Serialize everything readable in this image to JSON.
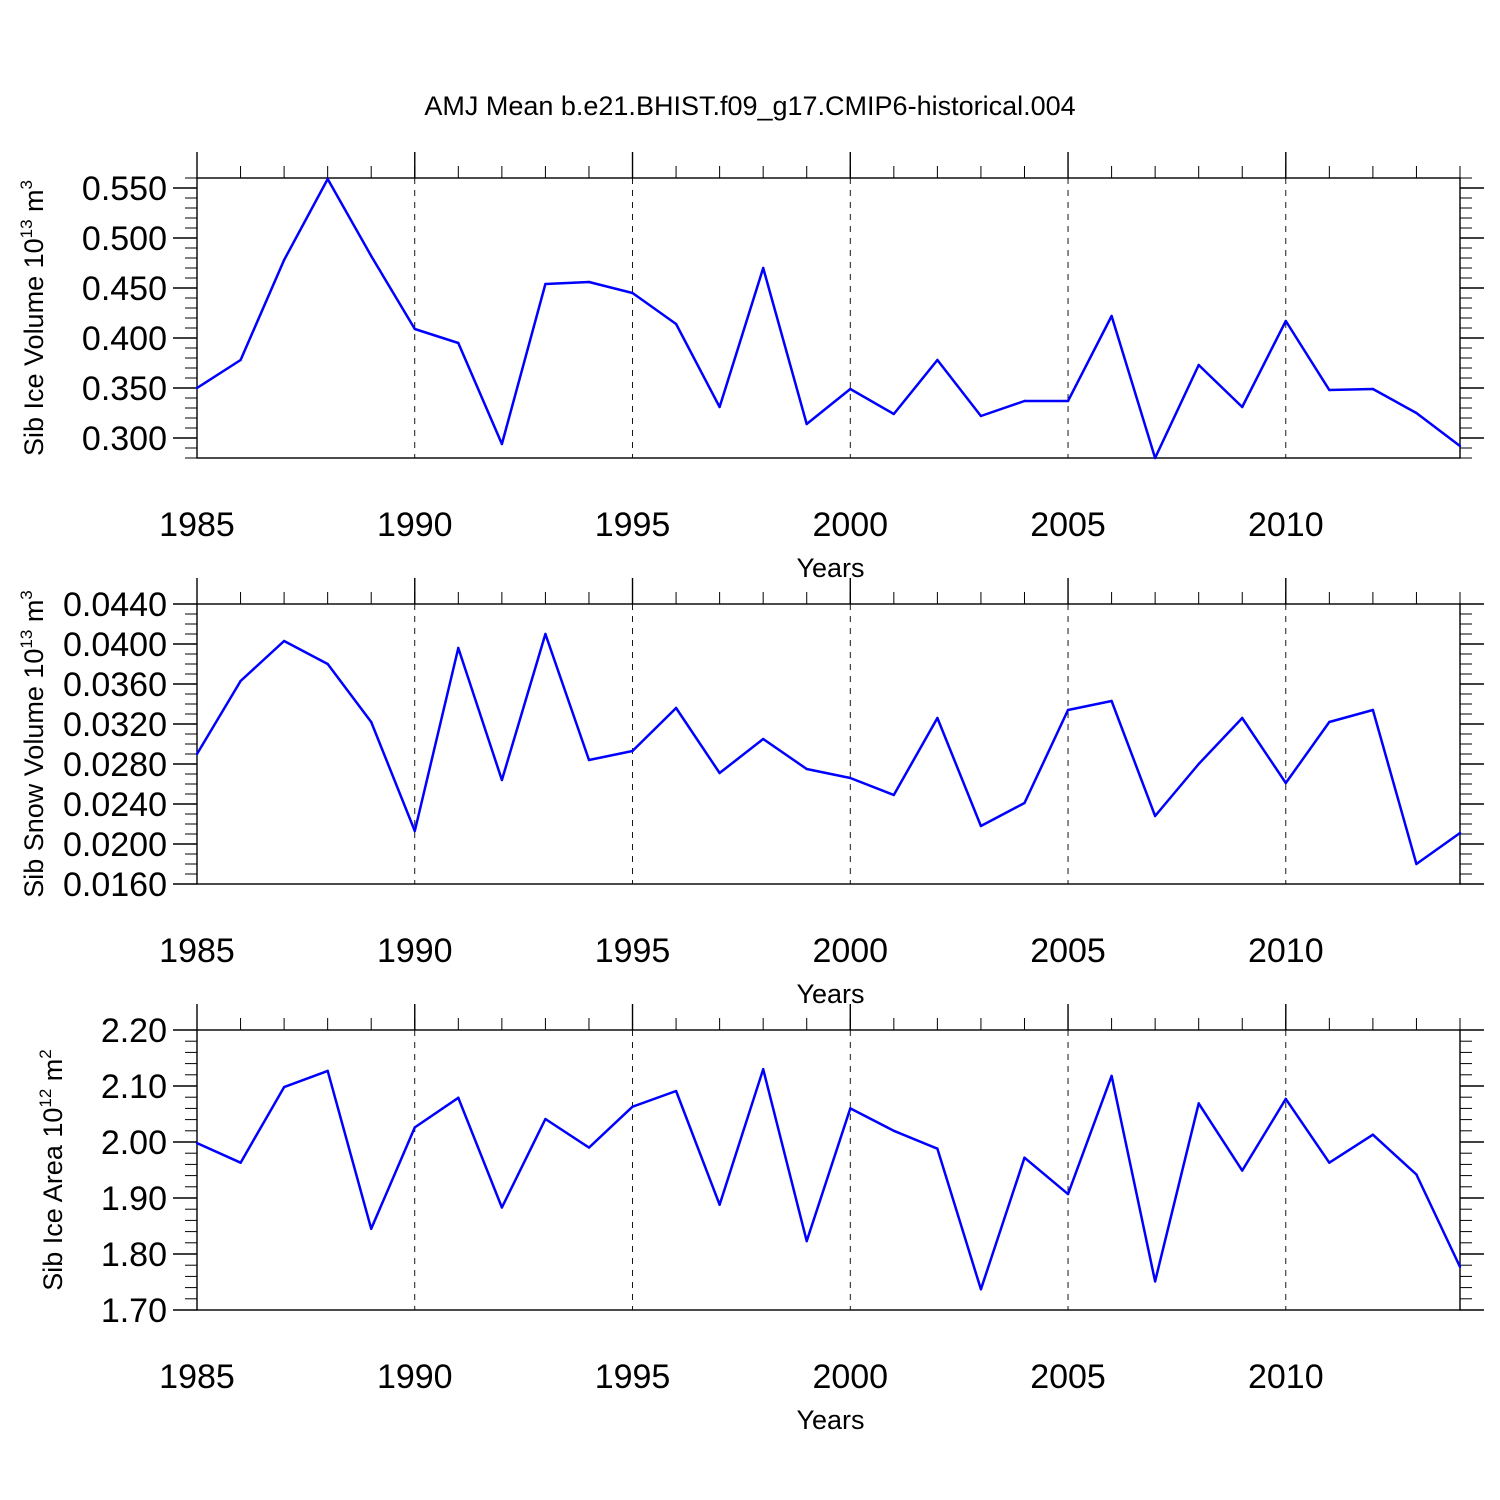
{
  "figure": {
    "title": "AMJ Mean b.e21.BHIST.f09_g17.CMIP6-historical.004"
  },
  "chart_data": [
    {
      "type": "line",
      "title": "AMJ Mean b.e21.BHIST.f09_g17.CMIP6-historical.004",
      "ylabel": {
        "main": "Sib Ice Volume 10",
        "exp": "13",
        "unit": " m",
        "unit_exp": "3"
      },
      "xlabel": "Years",
      "xlim": [
        1985,
        2014
      ],
      "ylim": [
        0.28,
        0.56
      ],
      "xticks": [
        1985,
        1990,
        1995,
        2000,
        2005,
        2010
      ],
      "xtick_labels": [
        "1985",
        "1990",
        "1995",
        "2000",
        "2005",
        "2010"
      ],
      "yticks": [
        0.3,
        0.35,
        0.4,
        0.45,
        0.5,
        0.55
      ],
      "ytick_labels": [
        "0.300",
        "0.350",
        "0.400",
        "0.450",
        "0.500",
        "0.550"
      ],
      "yminor_step": 0.01,
      "grid": "dashed vertical at major x ticks",
      "series": [
        {
          "name": "Sib Ice Volume",
          "color": "#0000ff",
          "x": [
            1985,
            1986,
            1987,
            1988,
            1989,
            1990,
            1991,
            1992,
            1993,
            1994,
            1995,
            1996,
            1997,
            1998,
            1999,
            2000,
            2001,
            2002,
            2003,
            2004,
            2005,
            2006,
            2007,
            2008,
            2009,
            2010,
            2011,
            2012,
            2013,
            2014
          ],
          "values": [
            0.35,
            0.378,
            0.478,
            0.559,
            0.482,
            0.409,
            0.395,
            0.294,
            0.454,
            0.456,
            0.445,
            0.414,
            0.331,
            0.47,
            0.314,
            0.349,
            0.324,
            0.378,
            0.322,
            0.337,
            0.337,
            0.422,
            0.28,
            0.373,
            0.331,
            0.417,
            0.348,
            0.349,
            0.325,
            0.292
          ]
        }
      ]
    },
    {
      "type": "line",
      "ylabel": {
        "main": "Sib Snow Volume 10",
        "exp": "13",
        "unit": " m",
        "unit_exp": "3"
      },
      "xlabel": "Years",
      "xlim": [
        1985,
        2014
      ],
      "ylim": [
        0.016,
        0.044
      ],
      "xticks": [
        1985,
        1990,
        1995,
        2000,
        2005,
        2010
      ],
      "xtick_labels": [
        "1985",
        "1990",
        "1995",
        "2000",
        "2005",
        "2010"
      ],
      "yticks": [
        0.016,
        0.02,
        0.024,
        0.028,
        0.032,
        0.036,
        0.04,
        0.044
      ],
      "ytick_labels": [
        "0.0160",
        "0.0200",
        "0.0240",
        "0.0280",
        "0.0320",
        "0.0360",
        "0.0400",
        "0.0440"
      ],
      "yminor_step": 0.001,
      "grid": "dashed vertical at major x ticks",
      "series": [
        {
          "name": "Sib Snow Volume",
          "color": "#0000ff",
          "x": [
            1985,
            1986,
            1987,
            1988,
            1989,
            1990,
            1991,
            1992,
            1993,
            1994,
            1995,
            1996,
            1997,
            1998,
            1999,
            2000,
            2001,
            2002,
            2003,
            2004,
            2005,
            2006,
            2007,
            2008,
            2009,
            2010,
            2011,
            2012,
            2013,
            2014
          ],
          "values": [
            0.029,
            0.0363,
            0.0403,
            0.038,
            0.0322,
            0.0213,
            0.0396,
            0.0264,
            0.041,
            0.0284,
            0.0293,
            0.0336,
            0.0271,
            0.0305,
            0.0275,
            0.0266,
            0.0249,
            0.0326,
            0.0218,
            0.0241,
            0.0334,
            0.0343,
            0.0228,
            0.028,
            0.0326,
            0.0261,
            0.0322,
            0.0334,
            0.018,
            0.0211
          ]
        }
      ]
    },
    {
      "type": "line",
      "ylabel": {
        "main": "Sib Ice Area 10",
        "exp": "12",
        "unit": " m",
        "unit_exp": "2"
      },
      "xlabel": "Years",
      "xlim": [
        1985,
        2014
      ],
      "ylim": [
        1.7,
        2.2
      ],
      "xticks": [
        1985,
        1990,
        1995,
        2000,
        2005,
        2010
      ],
      "xtick_labels": [
        "1985",
        "1990",
        "1995",
        "2000",
        "2005",
        "2010"
      ],
      "yticks": [
        1.7,
        1.8,
        1.9,
        2.0,
        2.1,
        2.2
      ],
      "ytick_labels": [
        "1.70",
        "1.80",
        "1.90",
        "2.00",
        "2.10",
        "2.20"
      ],
      "yminor_step": 0.02,
      "grid": "dashed vertical at major x ticks",
      "series": [
        {
          "name": "Sib Ice Area",
          "color": "#0000ff",
          "x": [
            1985,
            1986,
            1987,
            1988,
            1989,
            1990,
            1991,
            1992,
            1993,
            1994,
            1995,
            1996,
            1997,
            1998,
            1999,
            2000,
            2001,
            2002,
            2003,
            2004,
            2005,
            2006,
            2007,
            2008,
            2009,
            2010,
            2011,
            2012,
            2013,
            2014
          ],
          "values": [
            1.998,
            1.963,
            2.098,
            2.127,
            1.845,
            2.026,
            2.079,
            1.883,
            2.041,
            1.99,
            2.063,
            2.091,
            1.888,
            2.13,
            1.823,
            2.06,
            2.02,
            1.988,
            1.737,
            1.972,
            1.907,
            2.118,
            1.751,
            2.069,
            1.949,
            2.077,
            1.963,
            2.013,
            1.942,
            1.777
          ]
        }
      ]
    }
  ]
}
